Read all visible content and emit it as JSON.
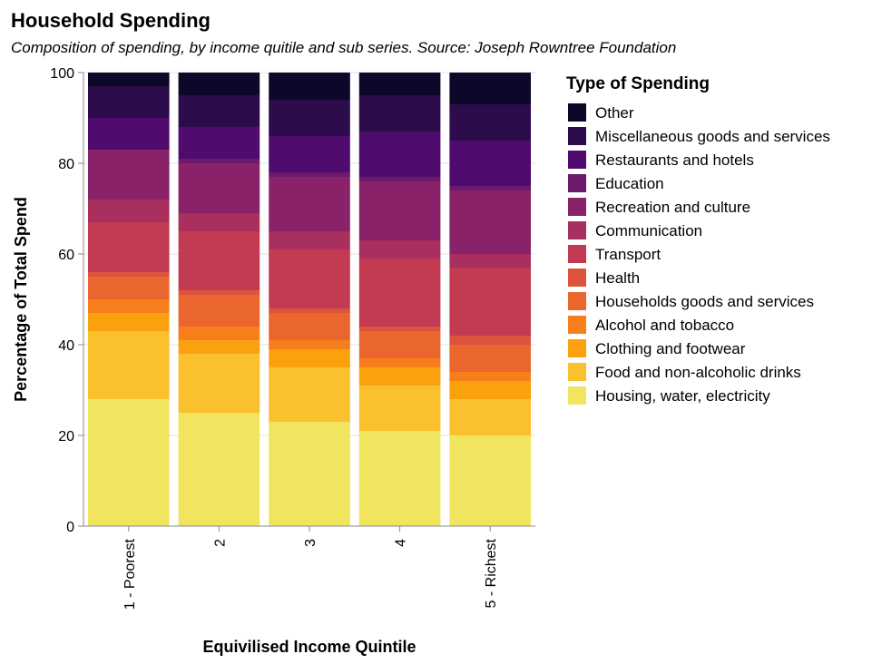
{
  "chart_data": {
    "type": "bar",
    "stacked": true,
    "title": "Household Spending",
    "subtitle": "Composition of spending, by income quitile and sub series. Source: Joseph Rowntree Foundation",
    "xlabel": "Equivilised Income Quintile",
    "ylabel": "Percentage of Total Spend",
    "ylim": [
      0,
      100
    ],
    "yticks": [
      0,
      20,
      40,
      60,
      80,
      100
    ],
    "grid": true,
    "legend_title": "Type of Spending",
    "legend_position": "right",
    "categories": [
      "1 - Poorest",
      "2",
      "3",
      "4",
      "5 - Richest"
    ],
    "series": [
      {
        "name": "Housing, water, electricity",
        "color": "#f1e45f",
        "values": [
          28,
          25,
          23,
          21,
          20
        ]
      },
      {
        "name": "Food and non-alcoholic drinks",
        "color": "#fbc02d",
        "values": [
          15,
          13,
          12,
          10,
          8
        ]
      },
      {
        "name": "Clothing and footwear",
        "color": "#fca10e",
        "values": [
          4,
          3,
          4,
          4,
          4
        ]
      },
      {
        "name": "Alcohol and tobacco",
        "color": "#f67f1b",
        "values": [
          3,
          3,
          2,
          2,
          2
        ]
      },
      {
        "name": "Households goods and services",
        "color": "#ea662e",
        "values": [
          5,
          7,
          6,
          6,
          6
        ]
      },
      {
        "name": "Health",
        "color": "#dc533e",
        "values": [
          1,
          1,
          1,
          1,
          2
        ]
      },
      {
        "name": "Transport",
        "color": "#c33b52",
        "values": [
          11,
          13,
          13,
          15,
          15
        ]
      },
      {
        "name": "Communication",
        "color": "#a82f5e",
        "values": [
          5,
          4,
          4,
          4,
          3
        ]
      },
      {
        "name": "Recreation and culture",
        "color": "#8a226a",
        "values": [
          11,
          11,
          12,
          13,
          14
        ]
      },
      {
        "name": "Education",
        "color": "#6d1a6c",
        "values": [
          0,
          1,
          1,
          1,
          1
        ]
      },
      {
        "name": "Restaurants and hotels",
        "color": "#4f0b6e",
        "values": [
          7,
          7,
          8,
          10,
          10
        ]
      },
      {
        "name": "Miscellaneous goods and services",
        "color": "#2c0c4b",
        "values": [
          7,
          7,
          8,
          8,
          8
        ]
      },
      {
        "name": "Other",
        "color": "#0d0829",
        "values": [
          3,
          5,
          6,
          5,
          7
        ]
      }
    ]
  }
}
